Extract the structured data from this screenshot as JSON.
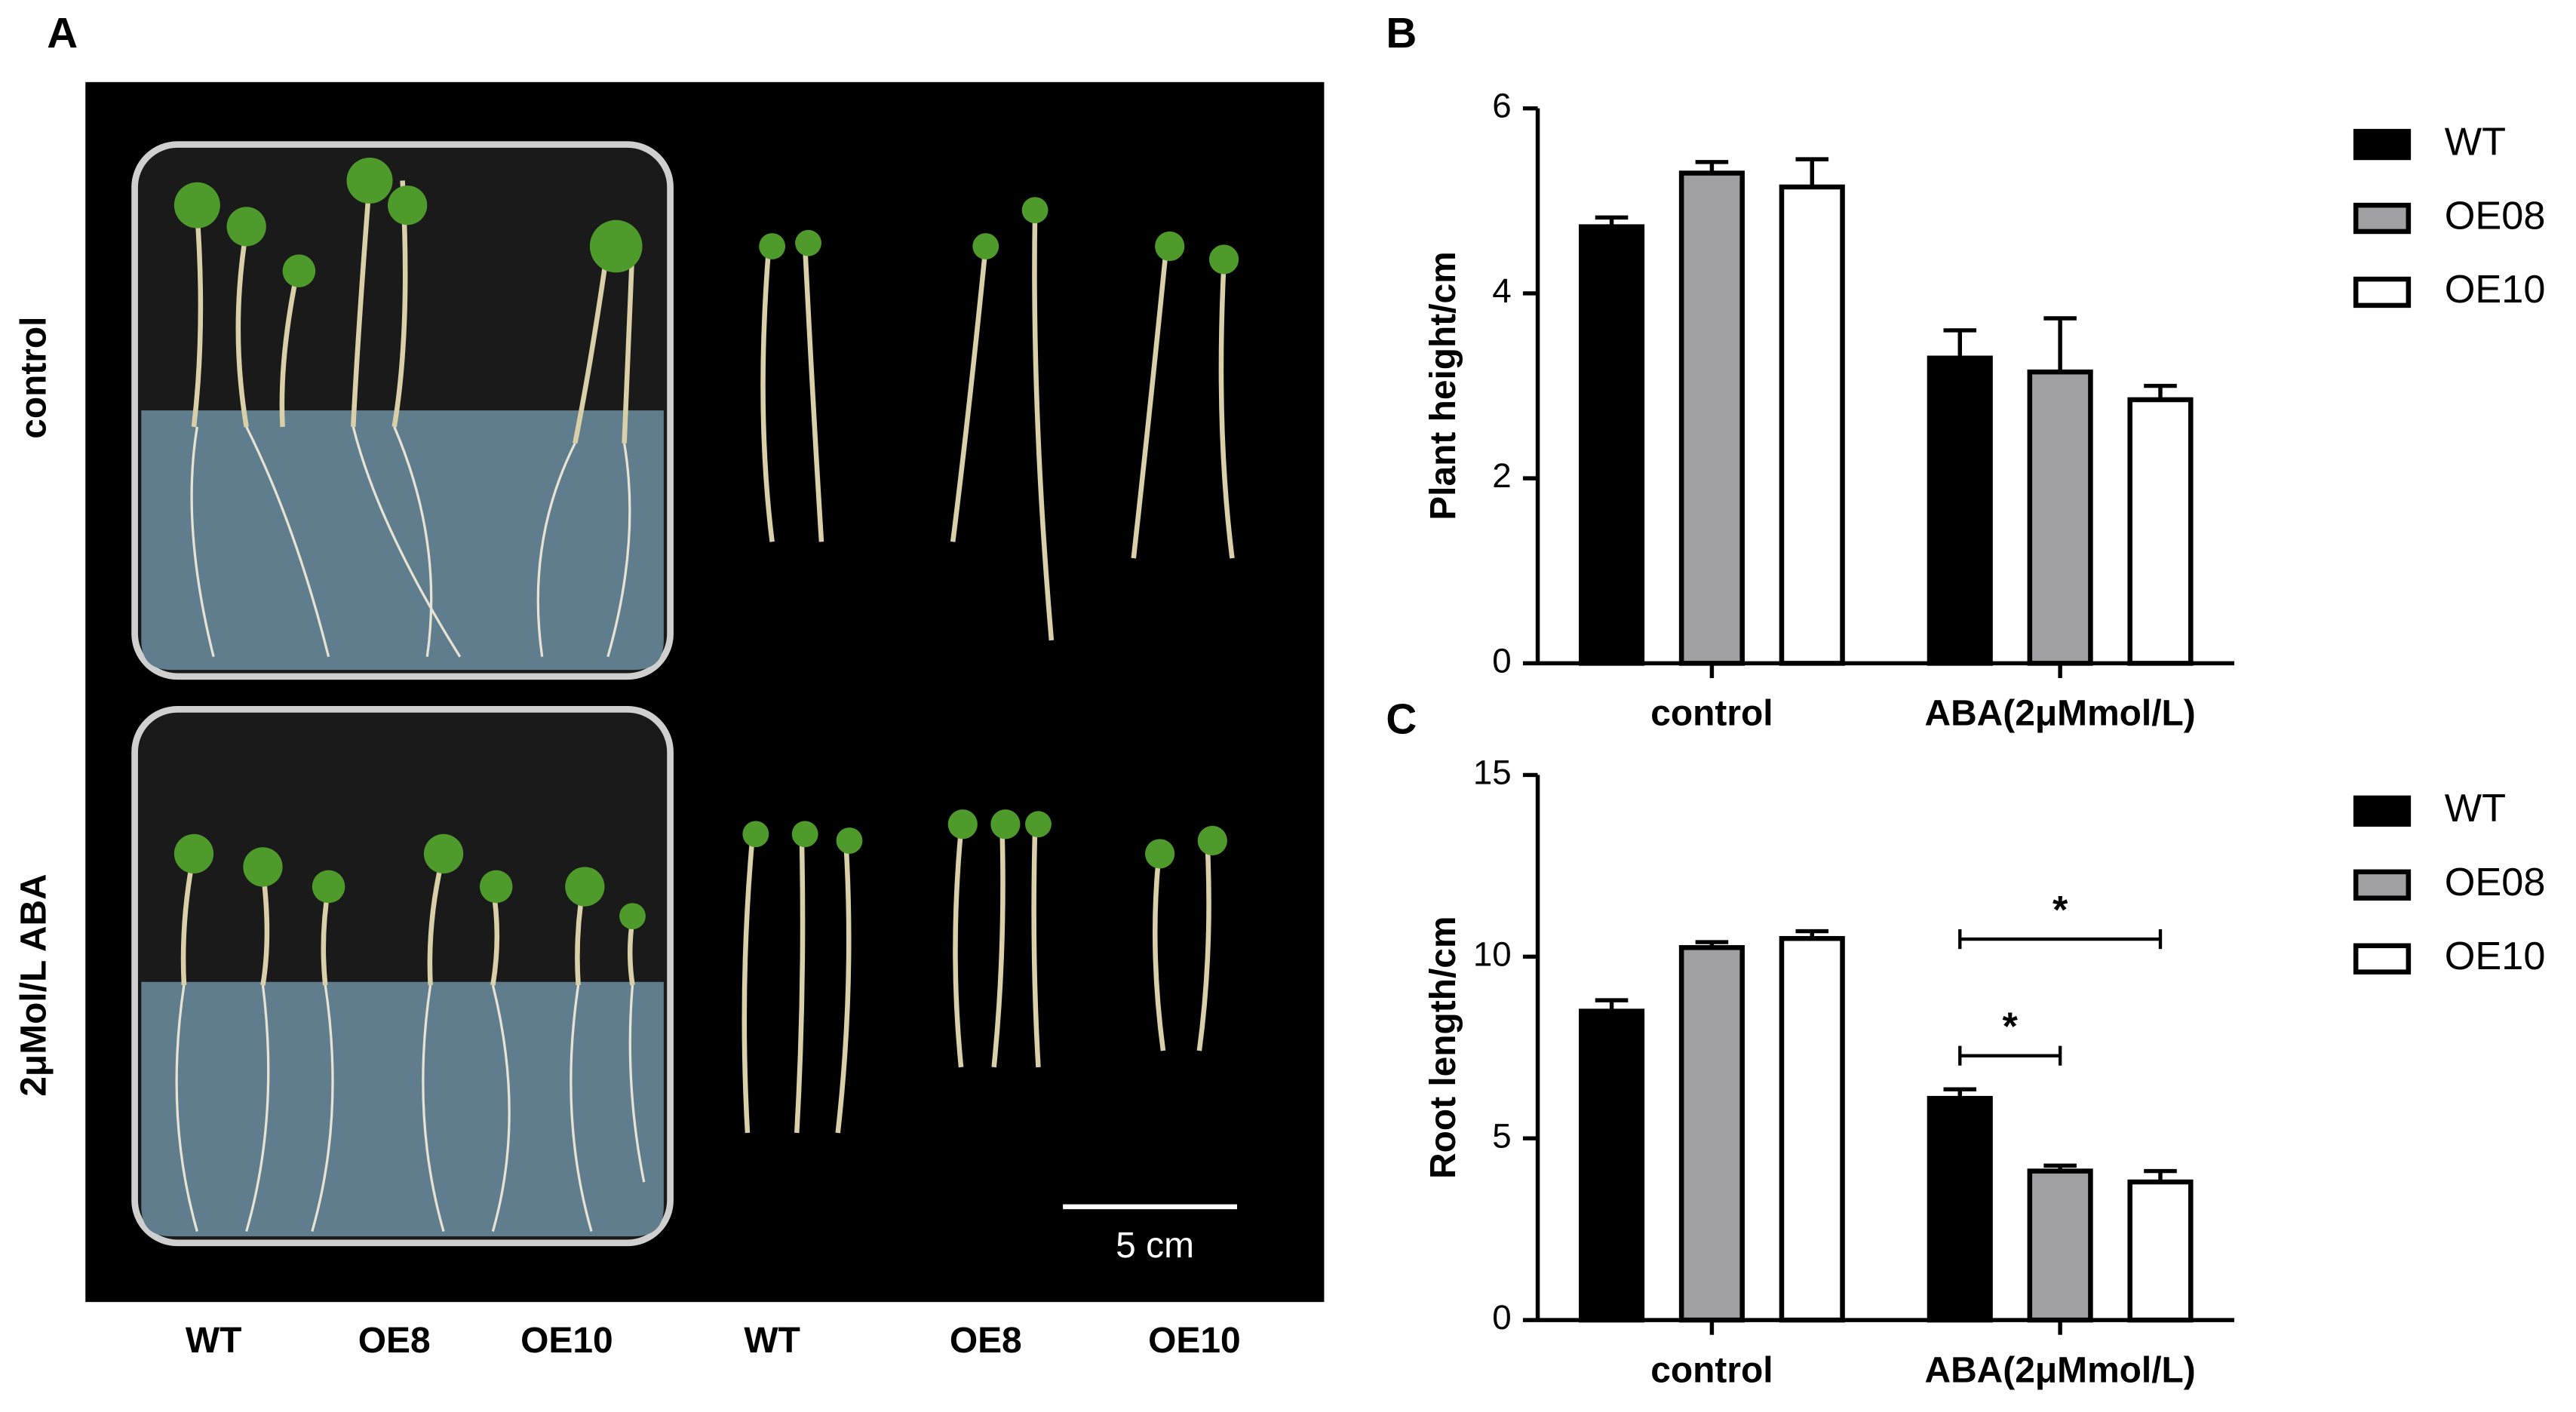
{
  "panel_a": {
    "label": "A",
    "rows": [
      "control",
      "2μMol/L ABA"
    ],
    "columns": [
      "WT",
      "OE8",
      "OE10",
      "WT",
      "OE8",
      "OE10"
    ],
    "scale_bar": "5 cm"
  },
  "chart_data": [
    {
      "type": "bar",
      "label": "B",
      "y_label": "Plant height/cm",
      "categories": [
        "control",
        "ABA(2μMmol/L)"
      ],
      "series": [
        {
          "name": "WT",
          "color": "#000000",
          "values": [
            4.72,
            3.3
          ],
          "errors": [
            0.1,
            0.3
          ]
        },
        {
          "name": "OE08",
          "color": "#a0a0a4",
          "values": [
            5.3,
            3.15
          ],
          "errors": [
            0.12,
            0.58
          ]
        },
        {
          "name": "OE10",
          "color": "#ffffff",
          "values": [
            5.15,
            2.85
          ],
          "errors": [
            0.3,
            0.15
          ]
        }
      ],
      "ylim": [
        0,
        6
      ],
      "yticks": [
        0,
        2,
        4,
        6
      ],
      "legend": "right"
    },
    {
      "type": "bar",
      "label": "C",
      "y_label": "Root length/cm",
      "categories": [
        "control",
        "ABA(2μMmol/L)"
      ],
      "series": [
        {
          "name": "WT",
          "color": "#000000",
          "values": [
            8.5,
            6.1
          ],
          "errors": [
            0.3,
            0.25
          ]
        },
        {
          "name": "OE08",
          "color": "#a0a0a4",
          "values": [
            10.25,
            4.1
          ],
          "errors": [
            0.15,
            0.15
          ]
        },
        {
          "name": "OE10",
          "color": "#ffffff",
          "values": [
            10.5,
            3.8
          ],
          "errors": [
            0.2,
            0.3
          ]
        }
      ],
      "ylim": [
        0,
        15
      ],
      "yticks": [
        0,
        5,
        10,
        15
      ],
      "legend": "right",
      "annotations": [
        {
          "text": "*"
        },
        {
          "text": "*"
        }
      ]
    }
  ]
}
